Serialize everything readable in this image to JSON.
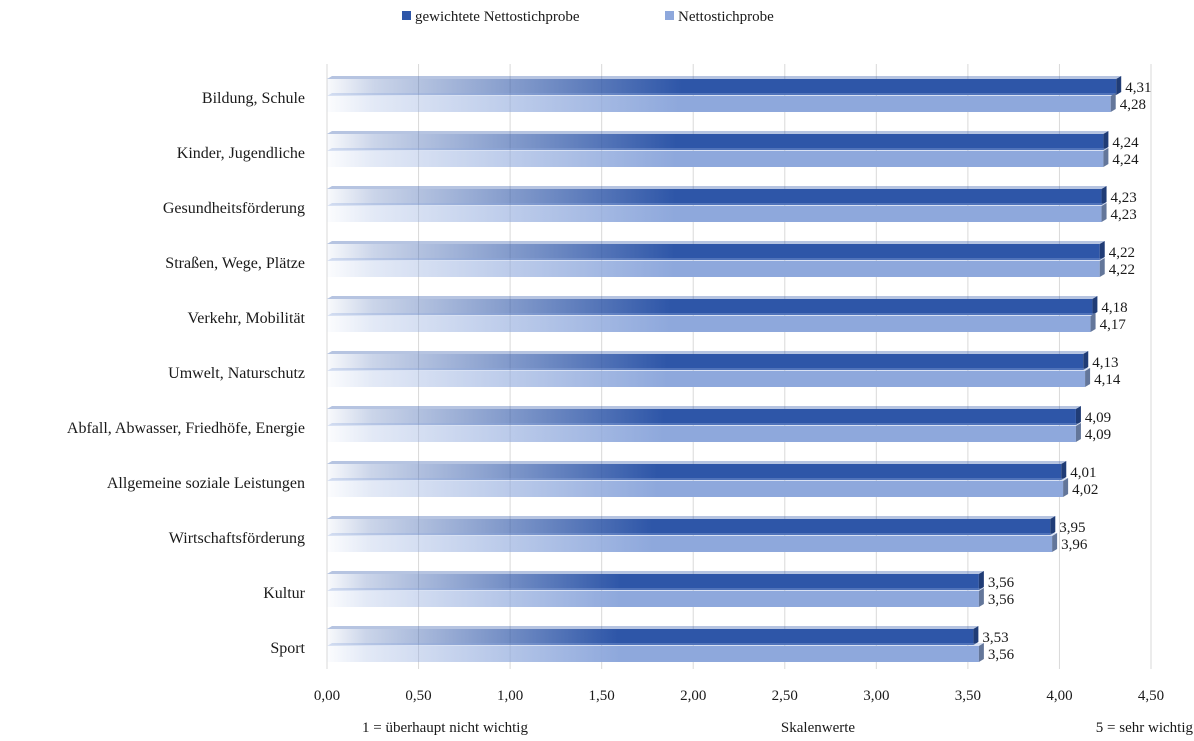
{
  "chart_data": {
    "type": "bar",
    "orientation": "horizontal",
    "style": "3d-gradient",
    "title": "",
    "categories": [
      "Bildung, Schule",
      "Kinder, Jugendliche",
      "Gesundheitsförderung",
      "Straßen, Wege, Plätze",
      "Verkehr, Mobilität",
      "Umwelt, Naturschutz",
      "Abfall, Abwasser, Friedhöfe, Energie",
      "Allgemeine soziale Leistungen",
      "Wirtschaftsförderung",
      "Kultur",
      "Sport"
    ],
    "series": [
      {
        "name": "gewichtete Nettostichprobe",
        "color": "#2e56a8",
        "values": [
          4.31,
          4.24,
          4.23,
          4.22,
          4.18,
          4.13,
          4.09,
          4.01,
          3.95,
          3.56,
          3.53
        ],
        "labels": [
          "4,31",
          "4,24",
          "4,23",
          "4,22",
          "4,18",
          "4,13",
          "4,09",
          "4,01",
          "3,95",
          "3,56",
          "3,53"
        ]
      },
      {
        "name": "Nettostichprobe",
        "color": "#8ea8dc",
        "values": [
          4.28,
          4.24,
          4.23,
          4.22,
          4.17,
          4.14,
          4.09,
          4.02,
          3.96,
          3.56,
          3.56
        ],
        "labels": [
          "4,28",
          "4,24",
          "4,23",
          "4,22",
          "4,17",
          "4,14",
          "4,09",
          "4,02",
          "3,96",
          "3,56",
          "3,56"
        ]
      }
    ],
    "xlim": [
      0,
      4.5
    ],
    "xticks": [
      0,
      0.5,
      1,
      1.5,
      2,
      2.5,
      3,
      3.5,
      4,
      4.5
    ],
    "xtick_labels": [
      "0,00",
      "0,50",
      "1,00",
      "1,50",
      "2,00",
      "2,50",
      "3,00",
      "3,50",
      "4,00",
      "4,50"
    ],
    "xlabel": {
      "left": "1 = überhaupt nicht wichtig",
      "left_glyph": "",
      "center": "Skalenwerte",
      "right_glyph": "",
      "right": "5 = sehr wichtig"
    },
    "legend_position": "top-center",
    "grid": true
  }
}
